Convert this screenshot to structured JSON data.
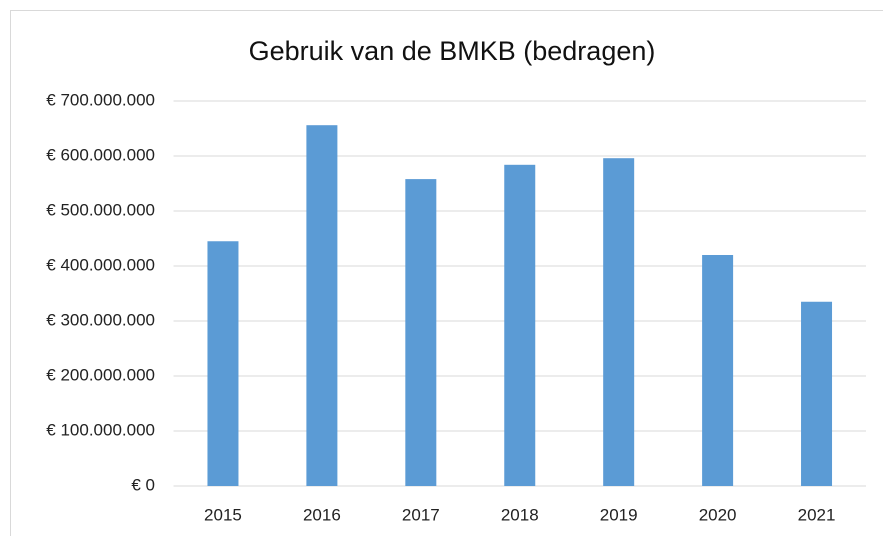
{
  "chart_data": {
    "type": "bar",
    "title": "Gebruik van de BMKB (bedragen)",
    "categories": [
      "2015",
      "2016",
      "2017",
      "2018",
      "2019",
      "2020",
      "2021"
    ],
    "values": [
      445000000,
      656000000,
      558000000,
      584000000,
      596000000,
      420000000,
      335000000
    ],
    "color": "#5b9bd5",
    "ylim": [
      0,
      700000000
    ],
    "yticks": [
      {
        "value": 0,
        "label": "€ 0"
      },
      {
        "value": 100000000,
        "label": "€ 100.000.000"
      },
      {
        "value": 200000000,
        "label": "€ 200.000.000"
      },
      {
        "value": 300000000,
        "label": "€ 300.000.000"
      },
      {
        "value": 400000000,
        "label": "€ 400.000.000"
      },
      {
        "value": 500000000,
        "label": "€ 500.000.000"
      },
      {
        "value": 600000000,
        "label": "€ 600.000.000"
      },
      {
        "value": 700000000,
        "label": "€ 700.000.000"
      }
    ],
    "grid": true
  }
}
